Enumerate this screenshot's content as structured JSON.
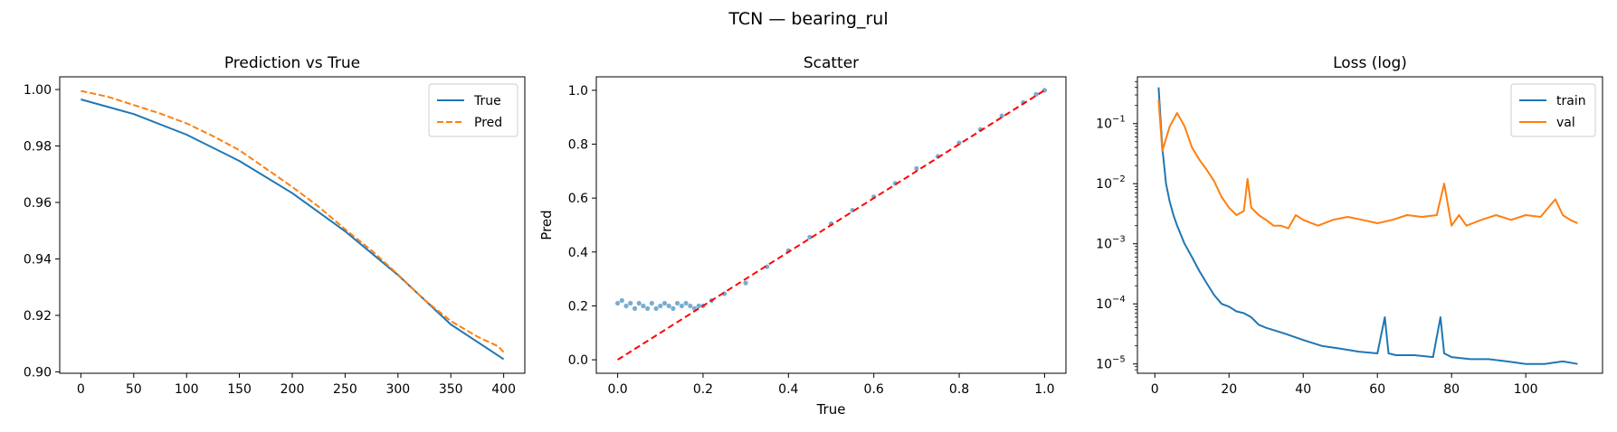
{
  "figure": {
    "title": "TCN — bearing_rul"
  },
  "chart_data": [
    {
      "type": "line",
      "title": "Prediction vs True",
      "xlabel": "",
      "ylabel": "",
      "xlim": [
        -20,
        420
      ],
      "ylim": [
        0.8995,
        1.0045
      ],
      "xticks": [
        0,
        50,
        100,
        150,
        200,
        250,
        300,
        350,
        400
      ],
      "yticks": [
        0.9,
        0.92,
        0.94,
        0.96,
        0.98,
        1.0
      ],
      "ytick_labels": [
        "0.90",
        "0.92",
        "0.94",
        "0.96",
        "0.98",
        "1.00"
      ],
      "legend": "top-right",
      "grid": false,
      "series": [
        {
          "name": "True",
          "color": "#1f77b4",
          "style": "solid",
          "x": [
            0,
            50,
            100,
            150,
            200,
            250,
            300,
            350,
            400
          ],
          "y": [
            0.9965,
            0.9913,
            0.984,
            0.9747,
            0.9633,
            0.9498,
            0.9343,
            0.9168,
            0.9045
          ]
        },
        {
          "name": "Pred",
          "color": "#ff7f0e",
          "style": "dashed",
          "x": [
            0,
            25,
            50,
            75,
            100,
            125,
            150,
            175,
            200,
            225,
            250,
            275,
            300,
            325,
            350,
            375,
            395,
            400
          ],
          "y": [
            0.9995,
            0.9975,
            0.9945,
            0.9915,
            0.988,
            0.9835,
            0.9785,
            0.972,
            0.9655,
            0.9585,
            0.9505,
            0.943,
            0.9345,
            0.9255,
            0.918,
            0.9125,
            0.909,
            0.907
          ]
        }
      ]
    },
    {
      "type": "scatter",
      "title": "Scatter",
      "xlabel": "True",
      "ylabel": "Pred",
      "xlim": [
        -0.05,
        1.05
      ],
      "ylim": [
        -0.05,
        1.05
      ],
      "xticks": [
        0.0,
        0.2,
        0.4,
        0.6,
        0.8,
        1.0
      ],
      "xtick_labels": [
        "0.0",
        "0.2",
        "0.4",
        "0.6",
        "0.8",
        "1.0"
      ],
      "yticks": [
        0.0,
        0.2,
        0.4,
        0.6,
        0.8,
        1.0
      ],
      "ytick_labels": [
        "0.0",
        "0.2",
        "0.4",
        "0.6",
        "0.8",
        "1.0"
      ],
      "grid": false,
      "points": {
        "color": "#1f77b4",
        "x": [
          0.0,
          0.01,
          0.02,
          0.03,
          0.04,
          0.05,
          0.06,
          0.07,
          0.08,
          0.09,
          0.1,
          0.11,
          0.12,
          0.13,
          0.14,
          0.15,
          0.16,
          0.17,
          0.18,
          0.19,
          0.2,
          0.22,
          0.25,
          0.3,
          0.35,
          0.4,
          0.45,
          0.5,
          0.55,
          0.6,
          0.65,
          0.7,
          0.75,
          0.8,
          0.85,
          0.9,
          0.95,
          0.98,
          1.0
        ],
        "y": [
          0.21,
          0.22,
          0.2,
          0.21,
          0.19,
          0.21,
          0.2,
          0.19,
          0.21,
          0.19,
          0.2,
          0.21,
          0.2,
          0.19,
          0.21,
          0.2,
          0.21,
          0.2,
          0.19,
          0.2,
          0.2,
          0.22,
          0.245,
          0.285,
          0.345,
          0.405,
          0.455,
          0.505,
          0.555,
          0.605,
          0.655,
          0.71,
          0.755,
          0.805,
          0.855,
          0.905,
          0.955,
          0.985,
          1.0
        ]
      },
      "reference_line": {
        "color": "#ff0000",
        "style": "dashed",
        "x": [
          0,
          1
        ],
        "y": [
          0,
          1
        ]
      }
    },
    {
      "type": "line",
      "title": "Loss (log)",
      "xlabel": "",
      "ylabel": "",
      "yscale": "log",
      "xlim": [
        -4.7,
        120.7
      ],
      "ylim": [
        7e-06,
        0.6
      ],
      "xticks": [
        0,
        20,
        40,
        60,
        80,
        100
      ],
      "yticks": [
        1e-05,
        0.0001,
        0.001,
        0.01,
        0.1
      ],
      "ytick_labels": [
        "10",
        "10",
        "10",
        "10",
        "10"
      ],
      "ytick_exponents": [
        "−5",
        "−4",
        "−3",
        "−2",
        "−1"
      ],
      "legend": "top-right",
      "grid": false,
      "series": [
        {
          "name": "train",
          "color": "#1f77b4",
          "style": "solid",
          "x": [
            1,
            2,
            3,
            4,
            5,
            6,
            8,
            10,
            12,
            14,
            16,
            18,
            20,
            22,
            24,
            26,
            28,
            30,
            35,
            40,
            45,
            50,
            55,
            60,
            62,
            63,
            65,
            70,
            75,
            77,
            78,
            80,
            85,
            90,
            95,
            100,
            105,
            110,
            114
          ],
          "y": [
            0.4,
            0.04,
            0.01,
            0.005,
            0.003,
            0.002,
            0.001,
            0.0006,
            0.00035,
            0.00022,
            0.00014,
            0.0001,
            9e-05,
            7.5e-05,
            7e-05,
            6e-05,
            4.5e-05,
            4e-05,
            3.2e-05,
            2.5e-05,
            2e-05,
            1.8e-05,
            1.6e-05,
            1.5e-05,
            6e-05,
            1.5e-05,
            1.4e-05,
            1.4e-05,
            1.3e-05,
            6e-05,
            1.5e-05,
            1.3e-05,
            1.2e-05,
            1.2e-05,
            1.1e-05,
            1e-05,
            1e-05,
            1.1e-05,
            1e-05
          ]
        },
        {
          "name": "val",
          "color": "#ff7f0e",
          "style": "solid",
          "x": [
            1,
            2,
            4,
            6,
            8,
            10,
            12,
            14,
            16,
            18,
            20,
            22,
            24,
            25,
            26,
            28,
            30,
            32,
            34,
            36,
            38,
            40,
            44,
            48,
            52,
            56,
            60,
            64,
            68,
            72,
            76,
            78,
            80,
            82,
            84,
            88,
            92,
            96,
            100,
            104,
            108,
            110,
            112,
            114
          ],
          "y": [
            0.25,
            0.035,
            0.09,
            0.15,
            0.09,
            0.04,
            0.025,
            0.017,
            0.011,
            0.006,
            0.004,
            0.003,
            0.0035,
            0.012,
            0.004,
            0.003,
            0.0025,
            0.002,
            0.002,
            0.0018,
            0.003,
            0.0025,
            0.002,
            0.0025,
            0.0028,
            0.0025,
            0.0022,
            0.0025,
            0.003,
            0.0028,
            0.003,
            0.01,
            0.002,
            0.003,
            0.002,
            0.0025,
            0.003,
            0.0025,
            0.003,
            0.0028,
            0.0055,
            0.003,
            0.0025,
            0.0022
          ]
        }
      ]
    }
  ]
}
